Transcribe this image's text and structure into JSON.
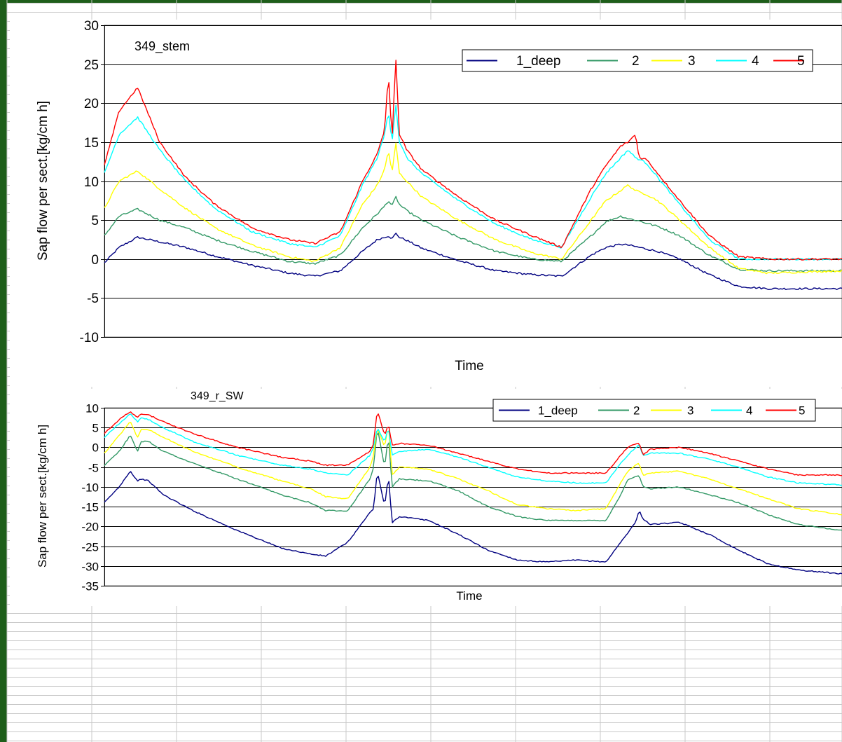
{
  "colors": {
    "frame": "#1e5e1a",
    "sheet_grid": "#c8c8c8",
    "series": [
      "#000080",
      "#339966",
      "#ffff00",
      "#00ffff",
      "#ff0000"
    ]
  },
  "chart_data": [
    {
      "type": "line",
      "title": "349_stem",
      "xlabel": "Time",
      "ylabel": "Sap flow per sect.[kg/cm h]",
      "ylim": [
        -10,
        30
      ],
      "yticks": [
        -10,
        -5,
        0,
        5,
        10,
        15,
        20,
        25,
        30
      ],
      "yticklabels": [
        "-10",
        "-5",
        "0",
        "5",
        "10",
        "15",
        "20",
        "25",
        "30"
      ],
      "grid": true,
      "legend": "top-right",
      "x": [
        0,
        0.02,
        0.045,
        0.075,
        0.11,
        0.15,
        0.2,
        0.25,
        0.285,
        0.32,
        0.35,
        0.37,
        0.38,
        0.385,
        0.39,
        0.395,
        0.4,
        0.41,
        0.43,
        0.48,
        0.53,
        0.58,
        0.62,
        0.66,
        0.68,
        0.7,
        0.71,
        0.72,
        0.725,
        0.735,
        0.75,
        0.78,
        0.82,
        0.86,
        0.9,
        1.0
      ],
      "series": [
        {
          "name": "1_deep",
          "values": [
            -0.5,
            1.5,
            2.8,
            2.2,
            1.5,
            0.4,
            -0.8,
            -1.8,
            -2.2,
            -1.5,
            1.0,
            2.5,
            2.8,
            3.0,
            2.6,
            3.3,
            2.8,
            2.4,
            1.4,
            -0.2,
            -1.5,
            -2.0,
            -2.2,
            0.5,
            1.5,
            1.9,
            1.8,
            1.6,
            1.5,
            1.3,
            1.0,
            0.0,
            -2.0,
            -3.5,
            -3.8,
            -3.8
          ]
        },
        {
          "name": "2",
          "values": [
            3,
            5.5,
            6.4,
            5.0,
            4.0,
            2.5,
            1.0,
            -0.3,
            -0.6,
            0.5,
            4.0,
            5.8,
            6.8,
            7.5,
            6.8,
            8.0,
            7.0,
            6.2,
            5.0,
            2.8,
            1.0,
            0.0,
            -0.3,
            3.0,
            4.8,
            5.5,
            5.2,
            5.0,
            4.9,
            4.6,
            4.2,
            3.0,
            0.5,
            -1.3,
            -1.5,
            -1.5
          ]
        },
        {
          "name": "3",
          "values": [
            6.5,
            10,
            11.3,
            9.0,
            6.5,
            4.0,
            1.8,
            0.3,
            -0.3,
            1.5,
            7.0,
            9.5,
            11.5,
            14,
            11,
            15,
            11,
            10,
            8.0,
            5.0,
            2.5,
            0.8,
            0.0,
            5.0,
            7.5,
            8.8,
            9.5,
            8.8,
            8.6,
            8.3,
            7.5,
            5.0,
            1.5,
            -1.2,
            -1.8,
            -1.5
          ]
        },
        {
          "name": "4",
          "values": [
            11,
            16,
            18.2,
            14,
            10,
            6.5,
            3.5,
            2.0,
            1.5,
            3.0,
            9.5,
            13,
            16,
            19,
            15,
            20,
            15,
            13,
            11,
            7.5,
            4.5,
            2.5,
            1.5,
            8.0,
            11,
            13,
            14,
            13,
            12.8,
            12.3,
            10.5,
            7.0,
            2.5,
            0.0,
            0.0,
            0.0
          ]
        },
        {
          "name": "5",
          "values": [
            12,
            19,
            22,
            15,
            10.5,
            7.0,
            4.0,
            2.5,
            2.0,
            3.5,
            10,
            13.5,
            16.5,
            24,
            15,
            26,
            16,
            14,
            11.5,
            8.0,
            5.0,
            3.0,
            1.5,
            9.0,
            12,
            14.5,
            15,
            16,
            13,
            12.8,
            11,
            7.5,
            3.0,
            0.3,
            0.0,
            0.0
          ]
        }
      ]
    },
    {
      "type": "line",
      "title": "349_r_SW",
      "xlabel": "Time",
      "ylabel": "Sap flow per sect.[kg/cm h]",
      "ylim": [
        -35,
        10
      ],
      "yticks": [
        -35,
        -30,
        -25,
        -20,
        -15,
        -10,
        -5,
        0,
        5,
        10
      ],
      "yticklabels": [
        "-35",
        "-30",
        "-25",
        "-20",
        "-15",
        "-10",
        "-5",
        "0",
        "5",
        "10"
      ],
      "grid": true,
      "legend": "top-right",
      "x": [
        0,
        0.02,
        0.035,
        0.045,
        0.05,
        0.06,
        0.08,
        0.12,
        0.18,
        0.24,
        0.28,
        0.3,
        0.33,
        0.36,
        0.365,
        0.37,
        0.38,
        0.385,
        0.39,
        0.4,
        0.44,
        0.48,
        0.52,
        0.56,
        0.6,
        0.64,
        0.68,
        0.7,
        0.71,
        0.72,
        0.725,
        0.73,
        0.74,
        0.78,
        0.82,
        0.86,
        0.9,
        0.94,
        1.0
      ],
      "series": [
        {
          "name": "1_deep",
          "values": [
            -14,
            -10,
            -6,
            -8.5,
            -8.0,
            -8.5,
            -12,
            -16,
            -21,
            -25.5,
            -27,
            -27.5,
            -24,
            -16.5,
            -15.5,
            -6,
            -15,
            -7,
            -19,
            -17.5,
            -18.5,
            -22,
            -26,
            -28.5,
            -29,
            -28.5,
            -29,
            -24,
            -21.5,
            -19,
            -16,
            -18,
            -19.5,
            -19,
            -22,
            -26,
            -29.5,
            -31,
            -32
          ]
        },
        {
          "name": "2",
          "values": [
            -4.5,
            -1,
            3,
            -1,
            1.5,
            1.5,
            -1,
            -4,
            -8,
            -12,
            -14,
            -16,
            -16,
            -8,
            -5,
            5,
            -5,
            3,
            -10,
            -8,
            -8.5,
            -11,
            -15,
            -17.5,
            -18.5,
            -18.5,
            -18.5,
            -12,
            -8,
            -7.5,
            -7,
            -10,
            -10.5,
            -10,
            -12,
            -14,
            -17,
            -19.5,
            -21
          ]
        },
        {
          "name": "3",
          "values": [
            -1.5,
            3,
            6.5,
            2.5,
            4.5,
            4.5,
            2.5,
            -1,
            -5,
            -8.5,
            -10.5,
            -12.5,
            -13,
            -5,
            -2,
            5,
            0,
            6,
            -7,
            -5,
            -5.5,
            -8,
            -11,
            -14.5,
            -15.5,
            -16,
            -15.5,
            -9,
            -6,
            -4.5,
            -4,
            -7,
            -6.5,
            -6,
            -8,
            -10.5,
            -13,
            -15.5,
            -17
          ]
        },
        {
          "name": "4",
          "values": [
            2.5,
            6,
            8.5,
            6.5,
            7.5,
            7.0,
            5.0,
            1.5,
            -2,
            -4.5,
            -5.5,
            -6.5,
            -7,
            -2,
            0,
            5,
            1.5,
            5,
            -2,
            -1,
            -0.5,
            -2.5,
            -5,
            -7.5,
            -8.5,
            -9,
            -9,
            -4,
            -2,
            0,
            0.5,
            -2,
            -1.5,
            -1.5,
            -3,
            -5,
            -7.5,
            -9,
            -9.5
          ]
        },
        {
          "name": "5",
          "values": [
            3.5,
            7,
            9,
            7.5,
            8.5,
            8.2,
            6.5,
            3.5,
            0.0,
            -2.5,
            -3.5,
            -4.5,
            -4.5,
            -1,
            1,
            9.5,
            3,
            6,
            0.5,
            1,
            0.5,
            -1.5,
            -3.5,
            -5.5,
            -6.5,
            -6.5,
            -6.5,
            -2,
            0,
            0.8,
            1,
            -2,
            -0.5,
            0,
            -1.5,
            -3.5,
            -5.5,
            -7,
            -7
          ]
        }
      ]
    }
  ]
}
